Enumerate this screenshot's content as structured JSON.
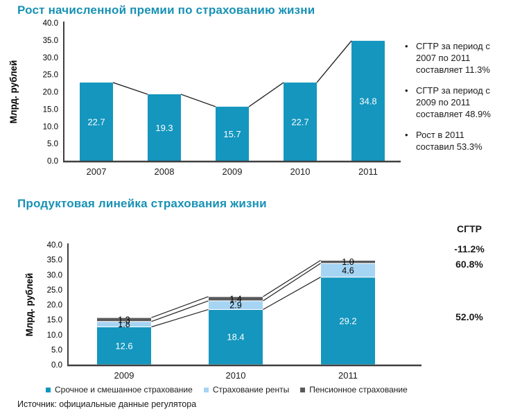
{
  "page": {
    "background": "#ffffff",
    "source_note": "Источник: официальные данные регулятора"
  },
  "colors": {
    "title": "#1791B5",
    "axis": "#3F3F3F",
    "connector": "#262626",
    "bar_teal": "#1496BE",
    "bar_light_blue": "#A6D4F3",
    "bar_dark_gray": "#58595A",
    "text": "#1A1A1A"
  },
  "bullets": [
    {
      "lines": [
        "СГТР за период с",
        "2007 по 2011",
        "составляет 11.3%"
      ]
    },
    {
      "lines": [
        "СГТР за период с",
        "2009 по 2011",
        "составляет 48.9%"
      ]
    },
    {
      "lines": [
        "Рост в 2011",
        "составил 53.3%"
      ]
    }
  ],
  "chart_data": [
    {
      "type": "bar",
      "title": "Рост начисленной премии по страхованию жизни",
      "ylabel": "Млрд. рублей",
      "ylim": [
        0,
        40
      ],
      "ytick_labels": [
        "0.0",
        "5.0",
        "10.0",
        "15.0",
        "20.0",
        "25.0",
        "30.0",
        "35.0",
        "40.0"
      ],
      "categories": [
        "2007",
        "2008",
        "2009",
        "2010",
        "2011"
      ],
      "values": [
        22.7,
        19.3,
        15.7,
        22.7,
        34.8
      ],
      "bar_color": "#1496BE",
      "grid": false,
      "connector_line": true,
      "legend_position": "none"
    },
    {
      "type": "stacked-bar",
      "title": "Продуктовая линейка страхования жизни",
      "ylabel": "Млрд. рублей",
      "ylim": [
        0,
        40
      ],
      "ytick_labels": [
        "0.0",
        "5.0",
        "10.0",
        "15.0",
        "20.0",
        "25.0",
        "30.0",
        "35.0",
        "40.0"
      ],
      "categories": [
        "2009",
        "2010",
        "2011"
      ],
      "series": [
        {
          "name": "Срочное и смешанное страхование",
          "color": "#1496BE",
          "values": [
            12.6,
            18.4,
            29.2
          ]
        },
        {
          "name": "Страхование ренты",
          "color": "#A6D4F3",
          "values": [
            1.8,
            2.9,
            4.6
          ]
        },
        {
          "name": "Пенсионное страхование",
          "color": "#58595A",
          "values": [
            1.3,
            1.4,
            1.0
          ]
        }
      ],
      "grid": false,
      "connector_line": true,
      "legend_position": "bottom",
      "sgtr": {
        "title": "СГТР",
        "values": [
          "-11.2%",
          "60.8%",
          "52.0%"
        ]
      }
    }
  ]
}
